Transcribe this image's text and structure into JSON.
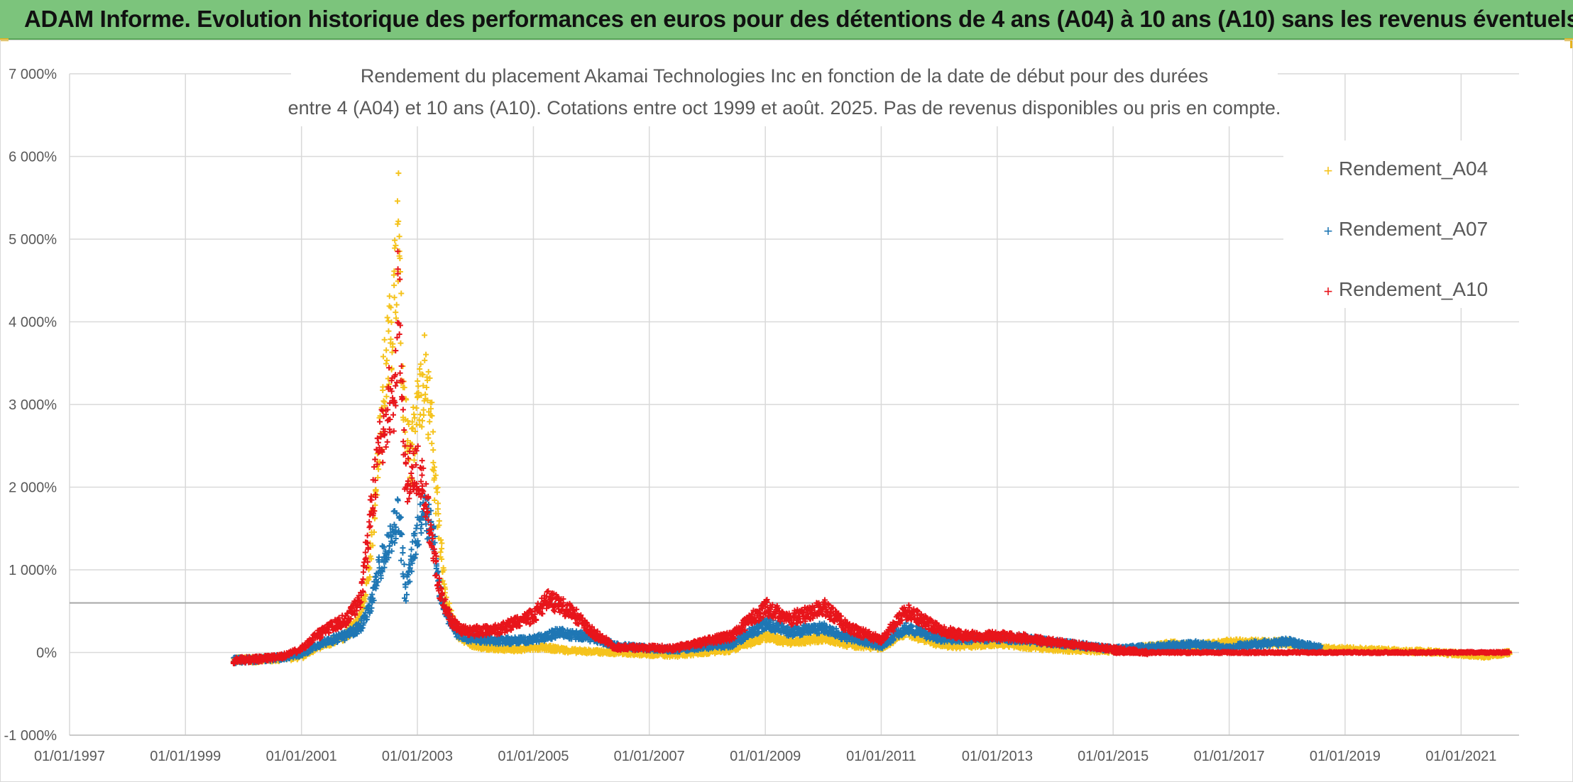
{
  "banner": {
    "title": "ADAM Informe. Evolution historique des performances en euros pour des détentions de 4 ans (A04) à 10 ans (A10) sans les revenus éventuels"
  },
  "colors": {
    "banner_bg": "#7cc47c",
    "A04": "#f5c31d",
    "A07": "#1f77b4",
    "A10": "#e8151b"
  },
  "chart_data": {
    "type": "scatter",
    "title_lines": [
      "Rendement du placement Akamai Technologies Inc en fonction de la date de début pour des durées",
      "entre 4 (A04) et 10 ans (A10). Cotations entre oct 1999 et août. 2025. Pas de revenus disponibles ou pris en compte."
    ],
    "x_axis": {
      "type": "date",
      "range": [
        "1997-01-01",
        "2022-01-01"
      ],
      "ticks": [
        "01/01/1997",
        "01/01/1999",
        "01/01/2001",
        "01/01/2003",
        "01/01/2005",
        "01/01/2007",
        "01/01/2009",
        "01/01/2011",
        "01/01/2013",
        "01/01/2015",
        "01/01/2017",
        "01/01/2019",
        "01/01/2021"
      ]
    },
    "y_axis": {
      "unit": "%",
      "range": [
        -1000,
        7000
      ],
      "ticks": [
        "-1 000%",
        "0%",
        "1 000%",
        "2 000%",
        "3 000%",
        "4 000%",
        "5 000%",
        "6 000%",
        "7 000%"
      ],
      "tick_values": [
        -1000,
        0,
        1000,
        2000,
        3000,
        4000,
        5000,
        6000,
        7000
      ],
      "reference_line": 600
    },
    "grid": true,
    "legend_position": "top-right",
    "series": [
      {
        "name": "Rendement_A04",
        "color": "#f5c31d",
        "x_end": "2021-11-01",
        "points": [
          [
            "1999-10-29",
            -90
          ],
          [
            "2000-04-01",
            -85
          ],
          [
            "2000-09-01",
            -70
          ],
          [
            "2001-01-01",
            -50
          ],
          [
            "2001-04-01",
            60
          ],
          [
            "2001-07-01",
            120
          ],
          [
            "2001-10-01",
            200
          ],
          [
            "2002-01-01",
            400
          ],
          [
            "2002-03-01",
            1000
          ],
          [
            "2002-05-01",
            2500
          ],
          [
            "2002-06-15",
            3500
          ],
          [
            "2002-08-01",
            4200
          ],
          [
            "2002-09-01",
            5200
          ],
          [
            "2002-10-01",
            3000
          ],
          [
            "2002-11-15",
            2300
          ],
          [
            "2003-01-01",
            3000
          ],
          [
            "2003-02-15",
            3400
          ],
          [
            "2003-04-01",
            2600
          ],
          [
            "2003-05-15",
            1400
          ],
          [
            "2003-07-01",
            600
          ],
          [
            "2003-09-01",
            250
          ],
          [
            "2003-11-01",
            120
          ],
          [
            "2004-03-01",
            60
          ],
          [
            "2004-09-01",
            40
          ],
          [
            "2005-03-01",
            60
          ],
          [
            "2005-09-01",
            20
          ],
          [
            "2006-06-01",
            0
          ],
          [
            "2007-06-01",
            -30
          ],
          [
            "2008-06-01",
            30
          ],
          [
            "2009-01-01",
            200
          ],
          [
            "2009-06-01",
            120
          ],
          [
            "2010-01-01",
            180
          ],
          [
            "2010-06-01",
            100
          ],
          [
            "2011-01-01",
            60
          ],
          [
            "2011-06-01",
            250
          ],
          [
            "2012-01-01",
            100
          ],
          [
            "2012-06-01",
            80
          ],
          [
            "2013-01-01",
            120
          ],
          [
            "2013-06-01",
            80
          ],
          [
            "2014-01-01",
            40
          ],
          [
            "2015-01-01",
            20
          ],
          [
            "2016-01-01",
            100
          ],
          [
            "2016-06-01",
            80
          ],
          [
            "2017-01-01",
            120
          ],
          [
            "2018-01-01",
            120
          ],
          [
            "2018-06-01",
            50
          ],
          [
            "2019-06-01",
            30
          ],
          [
            "2020-06-01",
            10
          ],
          [
            "2021-06-01",
            -40
          ],
          [
            "2021-11-01",
            0
          ]
        ]
      },
      {
        "name": "Rendement_A07",
        "color": "#1f77b4",
        "x_end": "2018-08-01",
        "points": [
          [
            "1999-10-29",
            -95
          ],
          [
            "2000-04-01",
            -80
          ],
          [
            "2000-09-01",
            -60
          ],
          [
            "2001-01-01",
            -20
          ],
          [
            "2001-04-01",
            80
          ],
          [
            "2001-07-01",
            150
          ],
          [
            "2001-10-01",
            200
          ],
          [
            "2002-01-01",
            300
          ],
          [
            "2002-03-01",
            550
          ],
          [
            "2002-05-01",
            1000
          ],
          [
            "2002-07-01",
            1300
          ],
          [
            "2002-09-01",
            1700
          ],
          [
            "2002-10-15",
            700
          ],
          [
            "2002-12-01",
            1200
          ],
          [
            "2003-02-01",
            1700
          ],
          [
            "2003-04-01",
            1500
          ],
          [
            "2003-05-15",
            800
          ],
          [
            "2003-07-01",
            450
          ],
          [
            "2003-09-01",
            250
          ],
          [
            "2003-11-01",
            180
          ],
          [
            "2004-06-01",
            140
          ],
          [
            "2005-01-01",
            150
          ],
          [
            "2005-06-01",
            240
          ],
          [
            "2006-01-01",
            180
          ],
          [
            "2006-06-01",
            80
          ],
          [
            "2007-06-01",
            30
          ],
          [
            "2008-06-01",
            100
          ],
          [
            "2009-01-01",
            350
          ],
          [
            "2009-06-01",
            250
          ],
          [
            "2010-01-01",
            300
          ],
          [
            "2010-06-01",
            180
          ],
          [
            "2011-01-01",
            80
          ],
          [
            "2011-06-01",
            300
          ],
          [
            "2012-01-01",
            170
          ],
          [
            "2012-06-01",
            170
          ],
          [
            "2013-01-01",
            180
          ],
          [
            "2013-06-01",
            160
          ],
          [
            "2014-01-01",
            120
          ],
          [
            "2015-01-01",
            40
          ],
          [
            "2016-01-01",
            80
          ],
          [
            "2016-06-01",
            100
          ],
          [
            "2017-01-01",
            60
          ],
          [
            "2017-06-01",
            100
          ],
          [
            "2018-01-01",
            130
          ],
          [
            "2018-08-01",
            50
          ]
        ]
      },
      {
        "name": "Rendement_A10",
        "color": "#e8151b",
        "x_end": "2015-08-01",
        "points": [
          [
            "1999-10-29",
            -95
          ],
          [
            "2000-04-01",
            -80
          ],
          [
            "2000-09-01",
            -50
          ],
          [
            "2001-01-01",
            50
          ],
          [
            "2001-04-01",
            200
          ],
          [
            "2001-07-01",
            300
          ],
          [
            "2001-10-01",
            400
          ],
          [
            "2002-01-01",
            600
          ],
          [
            "2002-03-01",
            1500
          ],
          [
            "2002-05-01",
            2500
          ],
          [
            "2002-07-01",
            3000
          ],
          [
            "2002-08-15",
            3200
          ],
          [
            "2002-09-01",
            4400
          ],
          [
            "2002-10-15",
            2000
          ],
          [
            "2002-12-01",
            2300
          ],
          [
            "2003-02-01",
            2100
          ],
          [
            "2003-04-01",
            1300
          ],
          [
            "2003-05-15",
            800
          ],
          [
            "2003-07-01",
            500
          ],
          [
            "2003-09-01",
            300
          ],
          [
            "2003-11-01",
            250
          ],
          [
            "2004-06-01",
            280
          ],
          [
            "2005-01-01",
            450
          ],
          [
            "2005-04-01",
            650
          ],
          [
            "2005-09-01",
            480
          ],
          [
            "2006-01-01",
            250
          ],
          [
            "2006-06-01",
            60
          ],
          [
            "2007-06-01",
            50
          ],
          [
            "2008-06-01",
            200
          ],
          [
            "2009-01-01",
            550
          ],
          [
            "2009-06-01",
            400
          ],
          [
            "2010-01-01",
            550
          ],
          [
            "2010-06-01",
            300
          ],
          [
            "2011-01-01",
            150
          ],
          [
            "2011-06-01",
            500
          ],
          [
            "2012-01-01",
            280
          ],
          [
            "2012-06-01",
            200
          ],
          [
            "2013-01-01",
            200
          ],
          [
            "2013-06-01",
            180
          ],
          [
            "2014-01-01",
            120
          ],
          [
            "2015-01-01",
            40
          ],
          [
            "2015-08-01",
            0
          ]
        ]
      }
    ],
    "flat_tail": {
      "from": "2015-01-01",
      "to": "2021-11-01",
      "value": 0
    }
  }
}
